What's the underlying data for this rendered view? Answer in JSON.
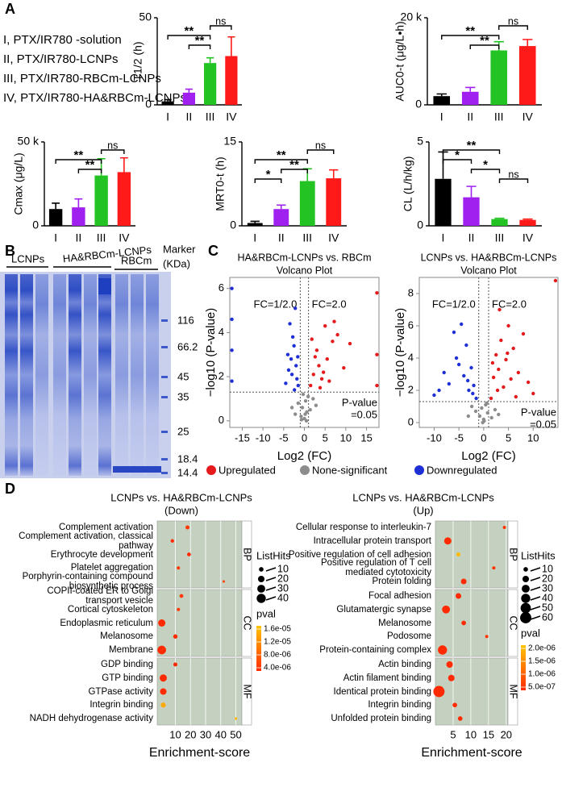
{
  "panel_labels": [
    "A",
    "B",
    "C",
    "D"
  ],
  "a_legend": [
    "I, PTX/IR780 -solution",
    "II, PTX/IR780-LCNPs",
    "III, PTX/IR780-RBCm-LCNPs",
    "IV, PTX/IR780-HA&RBCm-LCNPs"
  ],
  "gel": {
    "lanes": [
      "LCNPs",
      "HA&RBCm-LCNPs",
      "RBCm"
    ],
    "marker_title": [
      "Marker",
      "(KDa)"
    ],
    "markers": [
      "116",
      "66.2",
      "45",
      "35",
      "25",
      "18.4",
      "14.4"
    ]
  },
  "chart_data": [
    {
      "type": "bar",
      "y_label": "T1/2 (h)",
      "categories": [
        "I",
        "II",
        "III",
        "IV"
      ],
      "values": [
        2,
        7,
        24,
        28
      ],
      "errors": [
        1,
        2,
        3,
        11
      ],
      "colors": [
        "#000000",
        "#a020f0",
        "#22c322",
        "#ff1a1a"
      ],
      "ylim": [
        0,
        50
      ],
      "yticks": [
        0,
        50
      ],
      "brackets": [
        {
          "from": "III",
          "to": "IV",
          "label": "ns"
        },
        {
          "from": "I",
          "to": "III",
          "label": "**"
        },
        {
          "from": "II",
          "to": "III",
          "label": "**"
        }
      ]
    },
    {
      "type": "bar",
      "y_label": "AUC0-t (μg/L•h)",
      "categories": [
        "I",
        "II",
        "III",
        "IV"
      ],
      "values": [
        2000,
        3000,
        12500,
        13500
      ],
      "errors": [
        500,
        1000,
        2000,
        1500
      ],
      "colors": [
        "#000000",
        "#a020f0",
        "#22c322",
        "#ff1a1a"
      ],
      "ylim": [
        0,
        20000
      ],
      "yticks": [
        0,
        {
          "value": 20000,
          "label": "20 k"
        }
      ],
      "brackets": [
        {
          "from": "III",
          "to": "IV",
          "label": "ns"
        },
        {
          "from": "I",
          "to": "III",
          "label": "**"
        },
        {
          "from": "II",
          "to": "III",
          "label": "**"
        }
      ]
    },
    {
      "type": "bar",
      "y_label": "Cmax (μg/L)",
      "categories": [
        "I",
        "II",
        "III",
        "IV"
      ],
      "values": [
        10000,
        11000,
        30000,
        32000
      ],
      "errors": [
        3500,
        5000,
        10000,
        8500
      ],
      "colors": [
        "#000000",
        "#a020f0",
        "#22c322",
        "#ff1a1a"
      ],
      "ylim": [
        0,
        50000
      ],
      "yticks": [
        0,
        {
          "value": 50000,
          "label": "50 k"
        }
      ],
      "brackets": [
        {
          "from": "III",
          "to": "IV",
          "label": "ns"
        },
        {
          "from": "I",
          "to": "III",
          "label": "**"
        },
        {
          "from": "II",
          "to": "III",
          "label": "**"
        }
      ]
    },
    {
      "type": "bar",
      "y_label": "MRT0-t (h)",
      "categories": [
        "I",
        "II",
        "III",
        "IV"
      ],
      "values": [
        0.5,
        3,
        8,
        8.5
      ],
      "errors": [
        0.3,
        0.7,
        2.2,
        1.5
      ],
      "colors": [
        "#000000",
        "#a020f0",
        "#22c322",
        "#ff1a1a"
      ],
      "ylim": [
        0,
        15
      ],
      "yticks": [
        0,
        15
      ],
      "brackets": [
        {
          "from": "III",
          "to": "IV",
          "label": "ns"
        },
        {
          "from": "I",
          "to": "III",
          "label": "**"
        },
        {
          "from": "II",
          "to": "III",
          "label": "**"
        },
        {
          "from": "I",
          "to": "II",
          "label": "*"
        }
      ]
    },
    {
      "type": "bar",
      "y_label": "CL (L/h/kg)",
      "categories": [
        "I",
        "II",
        "III",
        "IV"
      ],
      "values": [
        2.8,
        1.7,
        0.4,
        0.35
      ],
      "errors": [
        1.6,
        0.65,
        0.05,
        0.05
      ],
      "colors": [
        "#000000",
        "#a020f0",
        "#22c322",
        "#ff1a1a"
      ],
      "ylim": [
        0,
        5
      ],
      "yticks": [
        0,
        5
      ],
      "brackets": [
        {
          "from": "I",
          "to": "III",
          "label": "**"
        },
        {
          "from": "I",
          "to": "II",
          "label": "*"
        },
        {
          "from": "II",
          "to": "III",
          "label": "*"
        },
        {
          "from": "III",
          "to": "IV",
          "label": "ns"
        }
      ]
    },
    {
      "type": "volcano",
      "title": "HA&RBCm-LCNPs vs. RBCm",
      "subtitle": "Volcano Plot",
      "x_label": "Log2 (FC)",
      "y_label": "−log10 (P-value)",
      "xlim": [
        -18,
        18
      ],
      "ylim": [
        -0.3,
        6.5
      ],
      "xticks": [
        -15,
        -10,
        -5,
        0,
        5,
        10,
        15
      ],
      "yticks": [
        0,
        2,
        4,
        6
      ],
      "fc_lines": [
        -1,
        1
      ],
      "p_line": 1.3,
      "fc_low_label": "FC=1/2.0",
      "fc_high_label": "FC=2.0",
      "p_label": [
        "P-value",
        "=0.05"
      ],
      "series": [
        {
          "name": "Upregulated",
          "color": "#e41a1c",
          "x": [
            1.5,
            2.2,
            3,
            3.5,
            4.2,
            5,
            5.5,
            6.8,
            8,
            9.5,
            11,
            3.8,
            2.6,
            7.2,
            17.5,
            17.5,
            17.5,
            1.8,
            4.6,
            6
          ],
          "y": [
            1.6,
            2.1,
            3.2,
            2.5,
            1.9,
            4.3,
            2.8,
            3.6,
            3.9,
            2.4,
            3.5,
            1.5,
            2.9,
            4.5,
            5.8,
            3.0,
            1.6,
            3.7,
            2.2,
            1.8
          ]
        },
        {
          "name": "None-significant",
          "color": "#8c8c8c",
          "x": [
            -0.8,
            -0.5,
            0,
            0.3,
            0.6,
            0.9,
            -1.5,
            -2.2,
            1.4,
            2.1,
            -0.3,
            0.5,
            -3,
            2.8,
            -0.7,
            0.2
          ],
          "y": [
            0.2,
            0.6,
            0.1,
            0.9,
            0.4,
            1.1,
            0.8,
            0.3,
            0.5,
            1.0,
            1.2,
            0,
            0.6,
            0.7,
            0.05,
            0.3
          ]
        },
        {
          "name": "Downregulated",
          "color": "#1f2fd6",
          "x": [
            -1.5,
            -2,
            -2.5,
            -3,
            -3.5,
            -4,
            -2.2,
            -1.8,
            -3.2,
            -2.8,
            -4.5,
            -17.5,
            -17.5,
            -17.5,
            -17.5,
            -2.4,
            -3.8,
            -1.6
          ],
          "y": [
            1.6,
            2.5,
            3.4,
            2.1,
            4.4,
            3.0,
            5.1,
            1.9,
            2.8,
            3.8,
            1.7,
            1.8,
            3.2,
            4.6,
            6.0,
            1.4,
            2.3,
            2.9
          ]
        }
      ]
    },
    {
      "type": "volcano",
      "title": "LCNPs vs. HA&RBCm-LCNPs",
      "subtitle": "Volcano Plot",
      "x_label": "Log2 (FC)",
      "y_label": "−log10 (P-value)",
      "xlim": [
        -13,
        15
      ],
      "ylim": [
        -0.3,
        9
      ],
      "xticks": [
        -10,
        -5,
        0,
        5,
        10
      ],
      "yticks": [
        0,
        2,
        4,
        6,
        8
      ],
      "fc_lines": [
        -1,
        1
      ],
      "p_line": 1.3,
      "fc_low_label": "FC=1/2.0",
      "fc_high_label": "FC=2.0",
      "p_label": [
        "P-value",
        "=0.05"
      ],
      "series": [
        {
          "color": "#e41a1c",
          "x": [
            1.5,
            2,
            2.5,
            3,
            3.5,
            4,
            4.5,
            5,
            5.5,
            6,
            7,
            8,
            9,
            10,
            14.5,
            3.2,
            6.5,
            2.8,
            4.8,
            1.8
          ],
          "y": [
            1.5,
            2.8,
            4.2,
            3.3,
            5.1,
            2.2,
            3.9,
            6.0,
            2.7,
            4.6,
            3.1,
            5.5,
            2.5,
            1.8,
            8.8,
            7.0,
            1.6,
            2.0,
            4.3,
            3.7
          ]
        },
        {
          "color": "#8c8c8c",
          "x": [
            -0.8,
            -0.4,
            0,
            0.4,
            0.8,
            -1.6,
            1.6,
            -2.4,
            2.3,
            -0.2,
            0.6,
            -3.1,
            3.0,
            0.1
          ],
          "y": [
            0.4,
            0.9,
            0.2,
            1.1,
            0.6,
            0.7,
            0.3,
            1.0,
            0.8,
            0,
            1.2,
            0.4,
            0.5,
            0.1
          ]
        },
        {
          "color": "#1f2fd6",
          "x": [
            -1.5,
            -2,
            -2.5,
            -3,
            -3.5,
            -4,
            -5,
            -6,
            -7,
            -8,
            -9,
            -10,
            -4.5,
            -2.2,
            -3.2,
            -5.5
          ],
          "y": [
            1.5,
            2.3,
            3.4,
            2.0,
            4.8,
            2.9,
            3.6,
            5.6,
            2.4,
            3.1,
            2.0,
            1.7,
            6.1,
            1.8,
            2.6,
            4.0
          ]
        }
      ]
    },
    {
      "type": "dot",
      "title": "LCNPs vs. HA&RBCm-LCNPs",
      "subtitle": "(Down)",
      "x_label": "Enrichment-score",
      "xlim": [
        -2,
        54
      ],
      "xticks": [
        10,
        20,
        30,
        40,
        50
      ],
      "groups": [
        {
          "name": "BP",
          "terms": [
            "Complement activation",
            "Complement activation, classical pathway",
            "Erythrocyte development",
            "Platelet aggregation",
            "Porphyrin-containing compound biosynthetic process"
          ],
          "values": [
            18,
            8,
            19,
            12,
            42
          ],
          "hits": [
            8,
            6,
            7,
            5,
            3
          ],
          "pval": [
            5e-06,
            4e-06,
            4e-06,
            5e-06,
            6e-06
          ]
        },
        {
          "name": "CC",
          "terms": [
            "COPII-coated ER to Golgi transport vesicle",
            "Cortical cytoskeleton",
            "Endoplasmic reticulum",
            "Melanosome",
            "Membrane"
          ],
          "values": [
            14,
            12,
            1,
            10,
            1
          ],
          "hits": [
            7,
            5,
            25,
            9,
            35
          ],
          "pval": [
            5e-06,
            5e-06,
            4e-06,
            4e-06,
            3e-06
          ]
        },
        {
          "name": "MF",
          "terms": [
            "GDP binding",
            "GTP binding",
            "GTPase activity",
            "Integrin binding",
            "NADH dehydrogenase activity"
          ],
          "values": [
            10,
            2,
            2,
            2,
            50
          ],
          "hits": [
            8,
            25,
            20,
            12,
            3
          ],
          "pval": [
            4e-06,
            3e-06,
            3e-06,
            1.4e-05,
            1.5e-05
          ]
        }
      ],
      "size_title": "ListHits",
      "size_ticks": [
        10,
        20,
        30,
        40
      ],
      "color_title": "pval",
      "color_ticks": [
        {
          "value": 1.6e-05,
          "label": "1.6e-05"
        },
        {
          "value": 1.2e-05,
          "label": "1.2e-05"
        },
        {
          "value": 8e-06,
          "label": "8.0e-06"
        },
        {
          "value": 4e-06,
          "label": "4.0e-06"
        }
      ],
      "colors": [
        "#ff2a00",
        "#ffc400"
      ]
    },
    {
      "type": "dot",
      "title": "LCNPs vs. HA&RBCm-LCNPs",
      "subtitle": "(Up)",
      "x_label": "Enrichment-score",
      "xlim": [
        0,
        20.5
      ],
      "xticks": [
        5,
        10,
        15,
        20
      ],
      "groups": [
        {
          "name": "BP",
          "terms": [
            "Cellular response to interleukin-7",
            "Intracellular protein transport",
            "Positive regulation of cell adhesion",
            "Positive regulation of T cell mediated cytotoxicity",
            "Protein folding"
          ],
          "values": [
            19.5,
            3.5,
            6.5,
            16.5,
            8
          ],
          "hits": [
            5,
            25,
            8,
            5,
            15
          ],
          "pval": [
            6e-07,
            5e-07,
            1.9e-06,
            6e-07,
            5e-07
          ]
        },
        {
          "name": "CC",
          "terms": [
            "Focal adhesion",
            "Glutamatergic synapse",
            "Melanosome",
            "Podosome",
            "Protein-containing complex"
          ],
          "values": [
            6.5,
            3,
            8,
            14.5,
            2
          ],
          "hits": [
            15,
            30,
            10,
            5,
            40
          ],
          "pval": [
            5e-07,
            5e-07,
            5e-07,
            6e-07,
            5e-07
          ]
        },
        {
          "name": "MF",
          "terms": [
            "Actin binding",
            "Actin filament binding",
            "Identical protein binding",
            "Integrin binding",
            "Unfolded protein binding"
          ],
          "values": [
            4,
            4.5,
            1,
            5.5,
            7
          ],
          "hits": [
            20,
            20,
            60,
            10,
            10
          ],
          "pval": [
            5e-07,
            5e-07,
            4e-07,
            5e-07,
            5e-07
          ]
        }
      ],
      "size_title": "ListHits",
      "size_ticks": [
        10,
        20,
        30,
        40,
        50,
        60
      ],
      "color_title": "pval",
      "color_ticks": [
        {
          "value": 2e-06,
          "label": "2.0e-06"
        },
        {
          "value": 1.5e-06,
          "label": "1.5e-06"
        },
        {
          "value": 1e-06,
          "label": "1.0e-06"
        },
        {
          "value": 5e-07,
          "label": "5.0e-07"
        }
      ],
      "colors": [
        "#ff2a00",
        "#ffc400"
      ]
    }
  ]
}
